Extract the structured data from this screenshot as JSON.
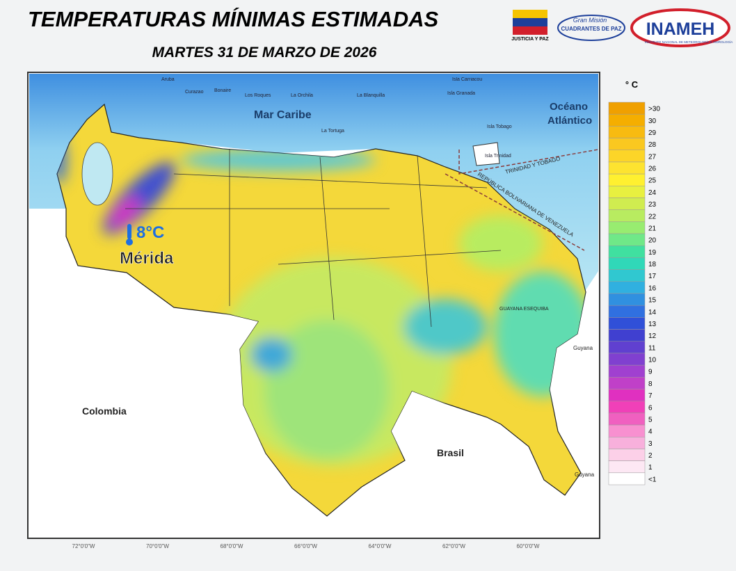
{
  "header": {
    "title": "TEMPERATURAS MÍNIMAS ESTIMADAS",
    "subtitle": "MARTES 31 DE MARZO DE 2026",
    "logos": [
      "JUSTICIA Y PAZ",
      "Gran Misión",
      "CUADRANTES DE PAZ",
      "INAMEH",
      "INSTITUTO NACIONAL DE METEOROLOGÍA E HIDROLOGÍA"
    ]
  },
  "map": {
    "places": [
      "Aruba",
      "Curazao",
      "Bonaire",
      "Los Roques",
      "La Orchila",
      "La Blanquilla",
      "Isla Carriacou",
      "Isla Granada",
      "La Tortuga",
      "Isla Tobago",
      "Isla Trinidad"
    ],
    "regions": [
      "Mar Caribe",
      "Océano Atlántico",
      "TRINIDAD Y TOBAGO",
      "REPÚBLICA BOLIVARIANA DE VENEZUELA",
      "GUAYANA ESEQUIBA",
      "Guyana",
      "Colombia",
      "Brasil",
      "Guyana"
    ],
    "annotation": {
      "value": "8°C",
      "place": "Mérida"
    },
    "lon_ticks": [
      "72°0'0\"W",
      "70°0'0\"W",
      "68°0'0\"W",
      "66°0'0\"W",
      "64°0'0\"W",
      "62°0'0\"W",
      "60°0'0\"W"
    ]
  },
  "legend": {
    "unit": "° C",
    "bins": [
      {
        "label": ">30",
        "color": "#f0a000"
      },
      {
        "label": "30",
        "color": "#f5ae00"
      },
      {
        "label": "29",
        "color": "#f8bb10"
      },
      {
        "label": "28",
        "color": "#fac820"
      },
      {
        "label": "27",
        "color": "#fcd528"
      },
      {
        "label": "26",
        "color": "#fde330"
      },
      {
        "label": "25",
        "color": "#fff030"
      },
      {
        "label": "24",
        "color": "#e8f040"
      },
      {
        "label": "23",
        "color": "#d0ec50"
      },
      {
        "label": "22",
        "color": "#b8ec60"
      },
      {
        "label": "21",
        "color": "#98ec70"
      },
      {
        "label": "20",
        "color": "#70e888"
      },
      {
        "label": "19",
        "color": "#40e0a0"
      },
      {
        "label": "18",
        "color": "#30d8b8"
      },
      {
        "label": "17",
        "color": "#30c8d0"
      },
      {
        "label": "16",
        "color": "#30b0e0"
      },
      {
        "label": "15",
        "color": "#3090e0"
      },
      {
        "label": "14",
        "color": "#3070e0"
      },
      {
        "label": "13",
        "color": "#3050d8"
      },
      {
        "label": "12",
        "color": "#4040d0"
      },
      {
        "label": "11",
        "color": "#6040d0"
      },
      {
        "label": "10",
        "color": "#8040d0"
      },
      {
        "label": "9",
        "color": "#a040d0"
      },
      {
        "label": "8",
        "color": "#c040c8"
      },
      {
        "label": "7",
        "color": "#e030c0"
      },
      {
        "label": "6",
        "color": "#f040b8"
      },
      {
        "label": "5",
        "color": "#f060c0"
      },
      {
        "label": "4",
        "color": "#f890d0"
      },
      {
        "label": "3",
        "color": "#f8b0dc"
      },
      {
        "label": "2",
        "color": "#fcd0e8"
      },
      {
        "label": "1",
        "color": "#fde8f4"
      },
      {
        "label": "<1",
        "color": "#ffffff"
      }
    ]
  }
}
